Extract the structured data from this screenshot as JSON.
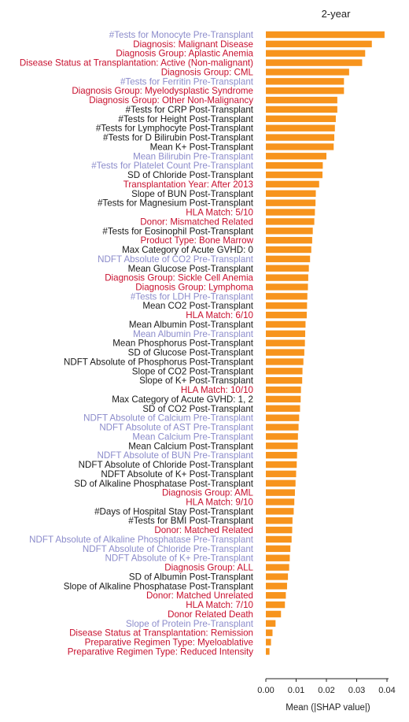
{
  "chart_data": {
    "type": "bar",
    "orientation": "horizontal",
    "title": "2-year",
    "xlabel": "Mean (|SHAP value|)",
    "xlim": [
      0,
      0.04
    ],
    "xticks": [
      "0.00",
      "0.01",
      "0.02",
      "0.03",
      "0.04"
    ],
    "grid": false,
    "bar_color": "#F7941D",
    "label_colors": {
      "pre_transplant": "#8C8CCB",
      "categorical": "#C8102E",
      "post_transplant": "#1A1A1A"
    },
    "features": [
      {
        "label": "#Tests for Monocyte Pre-Transplant",
        "value": 0.0392,
        "group": "pre_transplant"
      },
      {
        "label": "Diagnosis: Malignant Disease",
        "value": 0.035,
        "group": "categorical"
      },
      {
        "label": "Diagnosis Group: Aplastic Anemia",
        "value": 0.0328,
        "group": "categorical"
      },
      {
        "label": "Disease Status at Transplantation: Active (Non-malignant)",
        "value": 0.0318,
        "group": "categorical"
      },
      {
        "label": "Diagnosis Group: CML",
        "value": 0.0275,
        "group": "categorical"
      },
      {
        "label": "#Tests for Ferritin Pre-Transplant",
        "value": 0.0258,
        "group": "pre_transplant"
      },
      {
        "label": "Diagnosis Group: Myelodysplastic Syndrome",
        "value": 0.0258,
        "group": "categorical"
      },
      {
        "label": "Diagnosis Group: Other Non-Malignancy",
        "value": 0.0236,
        "group": "categorical"
      },
      {
        "label": "#Tests for CRP Post-Transplant",
        "value": 0.0236,
        "group": "post_transplant"
      },
      {
        "label": "#Tests for Height Post-Transplant",
        "value": 0.0231,
        "group": "post_transplant"
      },
      {
        "label": "#Tests for Lymphocyte Post-Transplant",
        "value": 0.0228,
        "group": "post_transplant"
      },
      {
        "label": "#Tests for D Bilirubin Post-Transplant",
        "value": 0.0226,
        "group": "post_transplant"
      },
      {
        "label": "Mean K+ Post-Transplant",
        "value": 0.0224,
        "group": "post_transplant"
      },
      {
        "label": "Mean Bilirubin Pre-Transplant",
        "value": 0.02,
        "group": "pre_transplant"
      },
      {
        "label": "#Tests for Platelet Count Pre-Transplant",
        "value": 0.0188,
        "group": "pre_transplant"
      },
      {
        "label": "SD of Chloride Post-Transplant",
        "value": 0.0187,
        "group": "post_transplant"
      },
      {
        "label": "Transplantation Year: After 2013",
        "value": 0.0176,
        "group": "categorical"
      },
      {
        "label": "Slope of BUN Post-Transplant",
        "value": 0.0165,
        "group": "post_transplant"
      },
      {
        "label": "#Tests for Magnesium Post-Transplant",
        "value": 0.0164,
        "group": "post_transplant"
      },
      {
        "label": "HLA Match: 5/10",
        "value": 0.0162,
        "group": "categorical"
      },
      {
        "label": "Donor: Mismatched Related",
        "value": 0.016,
        "group": "categorical"
      },
      {
        "label": "#Tests for Eosinophil Post-Transplant",
        "value": 0.0155,
        "group": "post_transplant"
      },
      {
        "label": "Product Type: Bone Marrow",
        "value": 0.0153,
        "group": "categorical"
      },
      {
        "label": "Max Category of Acute GVHD: 0",
        "value": 0.015,
        "group": "post_transplant"
      },
      {
        "label": "NDFT Absolute of CO2 Pre-Transplant",
        "value": 0.0146,
        "group": "pre_transplant"
      },
      {
        "label": "Mean Glucose Post-Transplant",
        "value": 0.0142,
        "group": "post_transplant"
      },
      {
        "label": "Diagnosis Group: Sickle Cell Anemia",
        "value": 0.014,
        "group": "categorical"
      },
      {
        "label": "Diagnosis Group: Lymphoma",
        "value": 0.0139,
        "group": "categorical"
      },
      {
        "label": "#Tests for LDH Pre-Transplant",
        "value": 0.0137,
        "group": "pre_transplant"
      },
      {
        "label": "Mean CO2 Post-Transplant",
        "value": 0.0136,
        "group": "post_transplant"
      },
      {
        "label": "HLA Match: 6/10",
        "value": 0.0135,
        "group": "categorical"
      },
      {
        "label": "Mean Albumin Post-Transplant",
        "value": 0.0131,
        "group": "post_transplant"
      },
      {
        "label": "Mean Albumin Pre-Transplant",
        "value": 0.013,
        "group": "pre_transplant"
      },
      {
        "label": "Mean Phosphorus Post-Transplant",
        "value": 0.0129,
        "group": "post_transplant"
      },
      {
        "label": "SD of Glucose Post-Transplant",
        "value": 0.0127,
        "group": "post_transplant"
      },
      {
        "label": "NDFT Absolute of Phosphorus Post-Transplant",
        "value": 0.0124,
        "group": "post_transplant"
      },
      {
        "label": "Slope of CO2 Post-Transplant",
        "value": 0.0121,
        "group": "post_transplant"
      },
      {
        "label": "Slope of K+ Post-Transplant",
        "value": 0.012,
        "group": "post_transplant"
      },
      {
        "label": "HLA Match: 10/10",
        "value": 0.0116,
        "group": "categorical"
      },
      {
        "label": "Max Category of Acute GVHD: 1, 2",
        "value": 0.0115,
        "group": "post_transplant"
      },
      {
        "label": "SD of CO2 Post-Transplant",
        "value": 0.0113,
        "group": "post_transplant"
      },
      {
        "label": "NDFT Absolute of Calcium Pre-Transplant",
        "value": 0.011,
        "group": "pre_transplant"
      },
      {
        "label": "NDFT Absolute of AST Pre-Transplant",
        "value": 0.0108,
        "group": "pre_transplant"
      },
      {
        "label": "Mean Calcium Pre-Transplant",
        "value": 0.0106,
        "group": "pre_transplant"
      },
      {
        "label": "Mean Calcium Post-Transplant",
        "value": 0.0105,
        "group": "post_transplant"
      },
      {
        "label": "NDFT Absolute of BUN Pre-Transplant",
        "value": 0.0103,
        "group": "pre_transplant"
      },
      {
        "label": "NDFT Absolute of Chloride Post-Transplant",
        "value": 0.0102,
        "group": "post_transplant"
      },
      {
        "label": "NDFT Absolute of K+ Post-Transplant",
        "value": 0.01,
        "group": "post_transplant"
      },
      {
        "label": "SD of Alkaline Phosphatase Post-Transplant",
        "value": 0.0098,
        "group": "post_transplant"
      },
      {
        "label": "Diagnosis Group: AML",
        "value": 0.0096,
        "group": "categorical"
      },
      {
        "label": "HLA Match: 9/10",
        "value": 0.0094,
        "group": "categorical"
      },
      {
        "label": "#Days of Hospital Stay Post-Transplant",
        "value": 0.0092,
        "group": "post_transplant"
      },
      {
        "label": "#Tests for BMI Post-Transplant",
        "value": 0.0088,
        "group": "post_transplant"
      },
      {
        "label": "Donor: Matched Related",
        "value": 0.0087,
        "group": "categorical"
      },
      {
        "label": "NDFT Absolute of Alkaline Phosphatase Pre-Transplant",
        "value": 0.0085,
        "group": "pre_transplant"
      },
      {
        "label": "NDFT Absolute of Chloride Pre-Transplant",
        "value": 0.0081,
        "group": "pre_transplant"
      },
      {
        "label": "NDFT Absolute of K+ Pre-Transplant",
        "value": 0.0079,
        "group": "pre_transplant"
      },
      {
        "label": "Diagnosis Group: ALL",
        "value": 0.0077,
        "group": "categorical"
      },
      {
        "label": "SD of Albumin Post-Transplant",
        "value": 0.0073,
        "group": "post_transplant"
      },
      {
        "label": "Slope of Alkaline Phosphatase Post-Transplant",
        "value": 0.007,
        "group": "post_transplant"
      },
      {
        "label": "Donor: Matched Unrelated",
        "value": 0.0066,
        "group": "categorical"
      },
      {
        "label": "HLA Match: 7/10",
        "value": 0.0063,
        "group": "categorical"
      },
      {
        "label": "Donor Related Death",
        "value": 0.005,
        "group": "categorical"
      },
      {
        "label": "Slope of Protein Pre-Transplant",
        "value": 0.0032,
        "group": "pre_transplant"
      },
      {
        "label": "Disease Status at Transplantation: Remission",
        "value": 0.0022,
        "group": "categorical"
      },
      {
        "label": "Preparative Regimen Type: Myeloablative",
        "value": 0.0017,
        "group": "categorical"
      },
      {
        "label": "Preparative Regimen Type: Reduced Intensity",
        "value": 0.0012,
        "group": "categorical"
      }
    ]
  }
}
